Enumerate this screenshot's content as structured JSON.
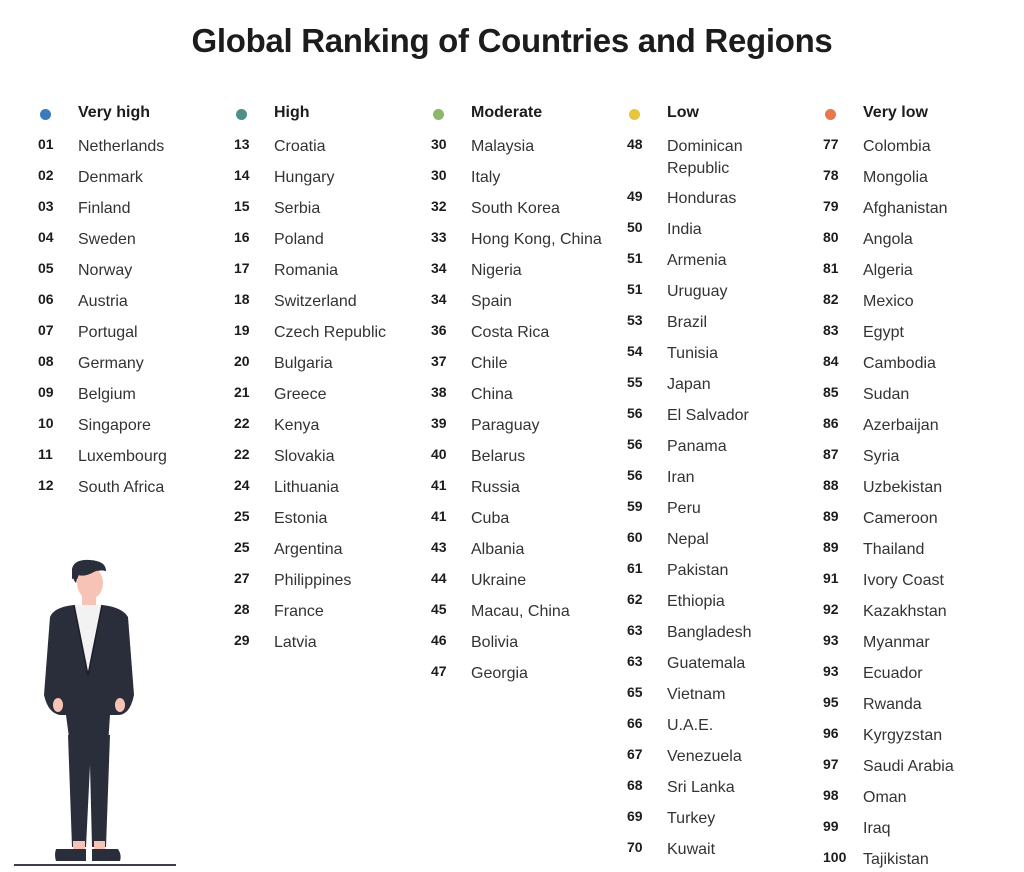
{
  "title": "Global Ranking of Countries and Regions",
  "columns": [
    {
      "label": "Very high",
      "color": "#3d7ab8",
      "items": [
        {
          "rank": "01",
          "name": "Netherlands"
        },
        {
          "rank": "02",
          "name": "Denmark"
        },
        {
          "rank": "03",
          "name": "Finland"
        },
        {
          "rank": "04",
          "name": "Sweden"
        },
        {
          "rank": "05",
          "name": "Norway"
        },
        {
          "rank": "06",
          "name": "Austria"
        },
        {
          "rank": "07",
          "name": "Portugal"
        },
        {
          "rank": "08",
          "name": "Germany"
        },
        {
          "rank": "09",
          "name": "Belgium"
        },
        {
          "rank": "10",
          "name": "Singapore"
        },
        {
          "rank": "11",
          "name": "Luxembourg"
        },
        {
          "rank": "12",
          "name": "South Africa"
        }
      ]
    },
    {
      "label": "High",
      "color": "#4e8f88",
      "items": [
        {
          "rank": "13",
          "name": "Croatia"
        },
        {
          "rank": "14",
          "name": "Hungary"
        },
        {
          "rank": "15",
          "name": "Serbia"
        },
        {
          "rank": "16",
          "name": "Poland"
        },
        {
          "rank": "17",
          "name": "Romania"
        },
        {
          "rank": "18",
          "name": "Switzerland"
        },
        {
          "rank": "19",
          "name": "Czech Republic"
        },
        {
          "rank": "20",
          "name": "Bulgaria"
        },
        {
          "rank": "21",
          "name": "Greece"
        },
        {
          "rank": "22",
          "name": "Kenya"
        },
        {
          "rank": "22",
          "name": "Slovakia"
        },
        {
          "rank": "24",
          "name": "Lithuania"
        },
        {
          "rank": "25",
          "name": "Estonia"
        },
        {
          "rank": "25",
          "name": "Argentina"
        },
        {
          "rank": "27",
          "name": "Philippines"
        },
        {
          "rank": "28",
          "name": "France"
        },
        {
          "rank": "29",
          "name": "Latvia"
        }
      ]
    },
    {
      "label": "Moderate",
      "color": "#8db86a",
      "items": [
        {
          "rank": "30",
          "name": "Malaysia"
        },
        {
          "rank": "30",
          "name": "Italy"
        },
        {
          "rank": "32",
          "name": "South Korea"
        },
        {
          "rank": "33",
          "name": "Hong Kong, China"
        },
        {
          "rank": "34",
          "name": "Nigeria"
        },
        {
          "rank": "34",
          "name": "Spain"
        },
        {
          "rank": "36",
          "name": "Costa Rica"
        },
        {
          "rank": "37",
          "name": "Chile"
        },
        {
          "rank": "38",
          "name": "China"
        },
        {
          "rank": "39",
          "name": "Paraguay"
        },
        {
          "rank": "40",
          "name": "Belarus"
        },
        {
          "rank": "41",
          "name": "Russia"
        },
        {
          "rank": "41",
          "name": "Cuba"
        },
        {
          "rank": "43",
          "name": "Albania"
        },
        {
          "rank": "44",
          "name": "Ukraine"
        },
        {
          "rank": "45",
          "name": "Macau, China"
        },
        {
          "rank": "46",
          "name": "Bolivia"
        },
        {
          "rank": "47",
          "name": "Georgia"
        }
      ]
    },
    {
      "label": "Low",
      "color": "#e8c53a",
      "items": [
        {
          "rank": "48",
          "name": "Dominican Republic"
        },
        {
          "rank": "49",
          "name": "Honduras"
        },
        {
          "rank": "50",
          "name": "India"
        },
        {
          "rank": "51",
          "name": "Armenia"
        },
        {
          "rank": "51",
          "name": "Uruguay"
        },
        {
          "rank": "53",
          "name": "Brazil"
        },
        {
          "rank": "54",
          "name": "Tunisia"
        },
        {
          "rank": "55",
          "name": "Japan"
        },
        {
          "rank": "56",
          "name": "El Salvador"
        },
        {
          "rank": "56",
          "name": "Panama"
        },
        {
          "rank": "56",
          "name": "Iran"
        },
        {
          "rank": "59",
          "name": "Peru"
        },
        {
          "rank": "60",
          "name": "Nepal"
        },
        {
          "rank": "61",
          "name": "Pakistan"
        },
        {
          "rank": "62",
          "name": "Ethiopia"
        },
        {
          "rank": "63",
          "name": "Bangladesh"
        },
        {
          "rank": "63",
          "name": "Guatemala"
        },
        {
          "rank": "65",
          "name": "Vietnam"
        },
        {
          "rank": "66",
          "name": "U.A.E."
        },
        {
          "rank": "67",
          "name": "Venezuela"
        },
        {
          "rank": "68",
          "name": "Sri Lanka"
        },
        {
          "rank": "69",
          "name": "Turkey"
        },
        {
          "rank": "70",
          "name": "Kuwait"
        }
      ]
    },
    {
      "label": "Very low",
      "color": "#e8774a",
      "items": [
        {
          "rank": "77",
          "name": "Colombia"
        },
        {
          "rank": "78",
          "name": "Mongolia"
        },
        {
          "rank": "79",
          "name": "Afghanistan"
        },
        {
          "rank": "80",
          "name": "Angola"
        },
        {
          "rank": "81",
          "name": "Algeria"
        },
        {
          "rank": "82",
          "name": "Mexico"
        },
        {
          "rank": "83",
          "name": "Egypt"
        },
        {
          "rank": "84",
          "name": "Cambodia"
        },
        {
          "rank": "85",
          "name": "Sudan"
        },
        {
          "rank": "86",
          "name": "Azerbaijan"
        },
        {
          "rank": "87",
          "name": "Syria"
        },
        {
          "rank": "88",
          "name": "Uzbekistan"
        },
        {
          "rank": "89",
          "name": "Cameroon"
        },
        {
          "rank": "89",
          "name": "Thailand"
        },
        {
          "rank": "91",
          "name": "Ivory Coast"
        },
        {
          "rank": "92",
          "name": "Kazakhstan"
        },
        {
          "rank": "93",
          "name": "Myanmar"
        },
        {
          "rank": "93",
          "name": "Ecuador"
        },
        {
          "rank": "95",
          "name": "Rwanda"
        },
        {
          "rank": "96",
          "name": "Kyrgyzstan"
        },
        {
          "rank": "97",
          "name": "Saudi Arabia"
        },
        {
          "rank": "98",
          "name": "Oman"
        },
        {
          "rank": "99",
          "name": "Iraq"
        },
        {
          "rank": "100",
          "name": "Tajikistan"
        }
      ]
    }
  ]
}
